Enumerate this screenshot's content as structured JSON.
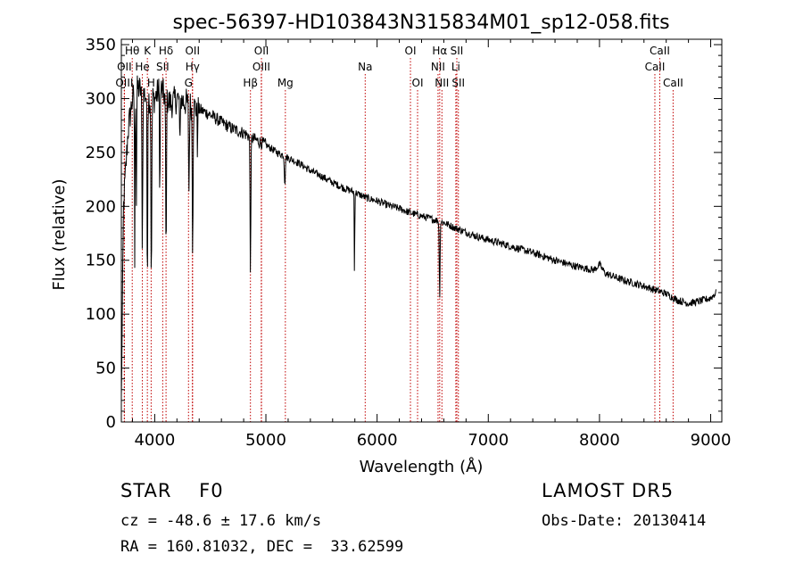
{
  "chart_data": {
    "type": "line",
    "title": "spec-56397-HD103843N315834M01_sp12-058.fits",
    "xlabel": "Wavelength (Å)",
    "ylabel": "Flux (relative)",
    "xlim": [
      3700,
      9100
    ],
    "ylim": [
      0,
      355
    ],
    "x_ticks": [
      4000,
      5000,
      6000,
      7000,
      8000,
      9000
    ],
    "y_ticks": [
      0,
      50,
      100,
      150,
      200,
      250,
      300,
      350
    ],
    "x_tick_labels": [
      "4000",
      "5000",
      "6000",
      "7000",
      "8000",
      "9000"
    ],
    "y_tick_labels": [
      "0",
      "50",
      "100",
      "150",
      "200",
      "250",
      "300",
      "350"
    ],
    "grid": false,
    "line_color": "#000000",
    "marker_color": "#c00000",
    "continuum": {
      "x": [
        3700,
        3720,
        3760,
        3800,
        3850,
        3900,
        3950,
        4000,
        4050,
        4100,
        4150,
        4200,
        4250,
        4300,
        4400,
        4500,
        4600,
        4700,
        4800,
        4900,
        5000,
        5100,
        5200,
        5300,
        5400,
        5500,
        5600,
        5700,
        5800,
        5900,
        6000,
        6100,
        6200,
        6300,
        6400,
        6500,
        6600,
        6700,
        6800,
        6900,
        7000,
        7200,
        7400,
        7600,
        7800,
        7950,
        8000,
        8050,
        8200,
        8400,
        8600,
        8700,
        8800,
        8900,
        9000,
        9050
      ],
      "y": [
        20,
        200,
        270,
        300,
        310,
        305,
        300,
        300,
        310,
        300,
        295,
        300,
        298,
        295,
        290,
        285,
        278,
        272,
        268,
        262,
        257,
        250,
        245,
        240,
        233,
        228,
        222,
        217,
        213,
        208,
        205,
        201,
        198,
        194,
        191,
        188,
        185,
        180,
        176,
        172,
        169,
        163,
        157,
        150,
        144,
        141,
        146,
        138,
        132,
        126,
        119,
        113,
        110,
        112,
        115,
        120
      ]
    },
    "absorption_lines": [
      {
        "x": 3820,
        "depth": 170,
        "width": 3
      },
      {
        "x": 3835,
        "depth": 110,
        "width": 4
      },
      {
        "x": 3889,
        "depth": 140,
        "width": 5
      },
      {
        "x": 3934,
        "depth": 185,
        "width": 4
      },
      {
        "x": 3970,
        "depth": 175,
        "width": 5
      },
      {
        "x": 4046,
        "depth": 100,
        "width": 4
      },
      {
        "x": 4102,
        "depth": 150,
        "width": 5
      },
      {
        "x": 4226,
        "depth": 60,
        "width": 3
      },
      {
        "x": 4308,
        "depth": 80,
        "width": 5
      },
      {
        "x": 4341,
        "depth": 130,
        "width": 5
      },
      {
        "x": 4384,
        "depth": 40,
        "width": 3
      },
      {
        "x": 4861,
        "depth": 125,
        "width": 5
      },
      {
        "x": 5170,
        "depth": 25,
        "width": 6
      },
      {
        "x": 5797,
        "depth": 82,
        "width": 3
      },
      {
        "x": 6563,
        "depth": 70,
        "width": 5
      }
    ],
    "spectral_markers": [
      {
        "label": "Hθ",
        "x": 3798,
        "row": 0
      },
      {
        "label": "K",
        "x": 3934,
        "row": 0
      },
      {
        "label": "Hδ",
        "x": 4102,
        "row": 0
      },
      {
        "label": "OII",
        "x": 4340,
        "row": 0
      },
      {
        "label": "OII",
        "x": 4960,
        "row": 0
      },
      {
        "label": "OI",
        "x": 6300,
        "row": 0
      },
      {
        "label": "Hα",
        "x": 6563,
        "row": 0
      },
      {
        "label": "SII",
        "x": 6717,
        "row": 0
      },
      {
        "label": "CaII",
        "x": 8542,
        "row": 0
      },
      {
        "label": "OII",
        "x": 3727,
        "row": 1
      },
      {
        "label": "He",
        "x": 3889,
        "row": 1
      },
      {
        "label": "SII",
        "x": 4072,
        "row": 1
      },
      {
        "label": "Hγ",
        "x": 4340,
        "row": 1
      },
      {
        "label": "OIII",
        "x": 4959,
        "row": 1
      },
      {
        "label": "Na",
        "x": 5893,
        "row": 1
      },
      {
        "label": "NII",
        "x": 6548,
        "row": 1
      },
      {
        "label": "Li",
        "x": 6708,
        "row": 1
      },
      {
        "label": "CaII",
        "x": 8498,
        "row": 1
      },
      {
        "label": "OIII",
        "x": 3727,
        "row": 2
      },
      {
        "label": "H",
        "x": 3968,
        "row": 2
      },
      {
        "label": "G",
        "x": 4304,
        "row": 2
      },
      {
        "label": "Hβ",
        "x": 4861,
        "row": 2
      },
      {
        "label": "Mg",
        "x": 5175,
        "row": 2
      },
      {
        "label": "OI",
        "x": 6364,
        "row": 2
      },
      {
        "label": "NII",
        "x": 6583,
        "row": 2
      },
      {
        "label": "SII",
        "x": 6731,
        "row": 2
      },
      {
        "label": "CaII",
        "x": 8662,
        "row": 2
      }
    ]
  },
  "info": {
    "class_line": "STAR    F0",
    "survey": "LAMOST DR5",
    "cz_line": "cz = -48.6 ± 17.6 km/s",
    "obs_date": "Obs-Date: 20130414",
    "radec_line": "RA = 160.81032, DEC =  33.62599"
  }
}
